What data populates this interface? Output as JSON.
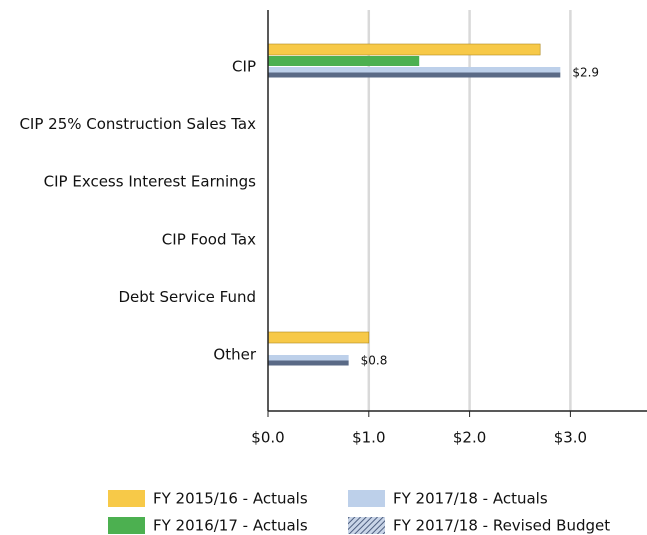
{
  "chart_data": {
    "type": "hbar",
    "categories": [
      "CIP",
      "CIP 25% Construction Sales Tax",
      "CIP Excess Interest Earnings",
      "CIP Food Tax",
      "Debt Service Fund",
      "Other"
    ],
    "series": [
      {
        "name": "FY 2015/16 - Actuals",
        "color": "#f7c948",
        "values": [
          2.7,
          null,
          null,
          null,
          null,
          1.0
        ]
      },
      {
        "name": "FY 2016/17 - Actuals",
        "color": "#4cb050",
        "values": [
          1.5,
          null,
          null,
          null,
          null,
          null
        ]
      },
      {
        "name": "FY 2017/18 - Actuals",
        "color": "#bdd0ea",
        "values": [
          2.9,
          null,
          null,
          null,
          null,
          0.8
        ],
        "value_labels": [
          "$2.9",
          null,
          null,
          null,
          null,
          "$0.8"
        ]
      },
      {
        "name": "FY 2017/18 - Revised Budget",
        "color": "#5a6a86",
        "hatch": true,
        "values": [
          2.9,
          null,
          null,
          null,
          null,
          0.8
        ]
      }
    ],
    "xlim": [
      0,
      3.76
    ],
    "xticks": [
      {
        "value": 0,
        "label": "$0.0"
      },
      {
        "value": 1,
        "label": "$1.0"
      },
      {
        "value": 2,
        "label": "$2.0"
      },
      {
        "value": 3,
        "label": "$3.0"
      }
    ],
    "grid": true,
    "legend": "bottom"
  }
}
